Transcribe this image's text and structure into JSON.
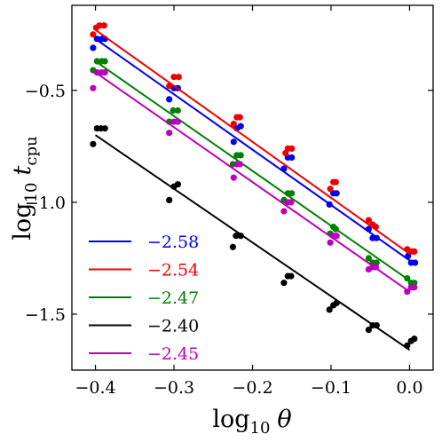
{
  "chart_data": {
    "type": "scatter",
    "xlabel": {
      "main": "log",
      "sub": "10",
      "var": "θ"
    },
    "ylabel": {
      "main": "log",
      "sub": "10",
      "var": "t",
      "varsub": "cpu"
    },
    "xlim": [
      -0.43,
      0.03
    ],
    "ylim": [
      -1.75,
      -0.12
    ],
    "x_ticks": [
      -0.4,
      -0.3,
      -0.2,
      -0.1,
      0.0
    ],
    "x_tick_labels": [
      "−0.4",
      "−0.3",
      "−0.2",
      "−0.1",
      "0.0"
    ],
    "y_ticks": [
      -1.5,
      -1.0,
      -0.5
    ],
    "y_tick_labels": [
      "−1.5",
      "−1.0",
      "−0.5"
    ],
    "grid": false,
    "legend_position": "bottom-left",
    "series": [
      {
        "name": "−2.58",
        "color": "#0000ee",
        "fit": {
          "x": [
            -0.4,
            0.0
          ],
          "y": [
            -0.27,
            -1.26
          ]
        },
        "points": [
          [
            -0.403,
            -0.31
          ],
          [
            -0.398,
            -0.27
          ],
          [
            -0.392,
            -0.27
          ],
          [
            -0.388,
            -0.27
          ],
          [
            -0.306,
            -0.54
          ],
          [
            -0.3,
            -0.49
          ],
          [
            -0.295,
            -0.49
          ],
          [
            -0.224,
            -0.73
          ],
          [
            -0.22,
            -0.67
          ],
          [
            -0.215,
            -0.66
          ],
          [
            -0.16,
            -0.85
          ],
          [
            -0.155,
            -0.8
          ],
          [
            -0.15,
            -0.8
          ],
          [
            -0.102,
            -1.01
          ],
          [
            -0.097,
            -0.96
          ],
          [
            -0.093,
            -0.96
          ],
          [
            -0.052,
            -1.12
          ],
          [
            -0.047,
            -1.16
          ],
          [
            -0.042,
            -1.16
          ],
          [
            -0.002,
            -1.24
          ],
          [
            0.002,
            -1.27
          ],
          [
            0.007,
            -1.27
          ]
        ]
      },
      {
        "name": "−2.54",
        "color": "#ee0000",
        "fit": {
          "x": [
            -0.4,
            0.0
          ],
          "y": [
            -0.23,
            -1.23
          ]
        },
        "points": [
          [
            -0.403,
            -0.25
          ],
          [
            -0.399,
            -0.22
          ],
          [
            -0.395,
            -0.21
          ],
          [
            -0.389,
            -0.21
          ],
          [
            -0.306,
            -0.48
          ],
          [
            -0.3,
            -0.44
          ],
          [
            -0.294,
            -0.44
          ],
          [
            -0.224,
            -0.65
          ],
          [
            -0.22,
            -0.62
          ],
          [
            -0.216,
            -0.62
          ],
          [
            -0.158,
            -0.78
          ],
          [
            -0.155,
            -0.76
          ],
          [
            -0.15,
            -0.76
          ],
          [
            -0.101,
            -0.94
          ],
          [
            -0.097,
            -0.91
          ],
          [
            -0.094,
            -0.91
          ],
          [
            -0.052,
            -1.08
          ],
          [
            -0.047,
            -1.1
          ],
          [
            -0.043,
            -1.11
          ],
          [
            -0.003,
            -1.21
          ],
          [
            0.002,
            -1.22
          ],
          [
            0.006,
            -1.22
          ]
        ]
      },
      {
        "name": "−2.47",
        "color": "#008000",
        "fit": {
          "x": [
            -0.4,
            0.0
          ],
          "y": [
            -0.37,
            -1.35
          ]
        },
        "points": [
          [
            -0.403,
            -0.41
          ],
          [
            -0.398,
            -0.37
          ],
          [
            -0.392,
            -0.37
          ],
          [
            -0.388,
            -0.37
          ],
          [
            -0.306,
            -0.64
          ],
          [
            -0.301,
            -0.59
          ],
          [
            -0.295,
            -0.59
          ],
          [
            -0.225,
            -0.83
          ],
          [
            -0.22,
            -0.79
          ],
          [
            -0.215,
            -0.79
          ],
          [
            -0.16,
            -0.99
          ],
          [
            -0.155,
            -0.96
          ],
          [
            -0.15,
            -0.96
          ],
          [
            -0.101,
            -1.14
          ],
          [
            -0.097,
            -1.11
          ],
          [
            -0.094,
            -1.12
          ],
          [
            -0.052,
            -1.25
          ],
          [
            -0.047,
            -1.27
          ],
          [
            -0.042,
            -1.27
          ],
          [
            -0.003,
            -1.34
          ],
          [
            0.002,
            -1.36
          ],
          [
            0.006,
            -1.36
          ]
        ]
      },
      {
        "name": "−2.40",
        "color": "#000000",
        "fit": {
          "x": [
            -0.4,
            0.0
          ],
          "y": [
            -0.7,
            -1.66
          ]
        },
        "points": [
          [
            -0.403,
            -0.74
          ],
          [
            -0.398,
            -0.67
          ],
          [
            -0.393,
            -0.67
          ],
          [
            -0.388,
            -0.67
          ],
          [
            -0.306,
            -0.99
          ],
          [
            -0.3,
            -0.93
          ],
          [
            -0.295,
            -0.92
          ],
          [
            -0.225,
            -1.2
          ],
          [
            -0.221,
            -1.15
          ],
          [
            -0.215,
            -1.15
          ],
          [
            -0.16,
            -1.36
          ],
          [
            -0.155,
            -1.33
          ],
          [
            -0.151,
            -1.33
          ],
          [
            -0.102,
            -1.48
          ],
          [
            -0.097,
            -1.46
          ],
          [
            -0.093,
            -1.45
          ],
          [
            -0.052,
            -1.57
          ],
          [
            -0.047,
            -1.55
          ],
          [
            -0.042,
            -1.55
          ],
          [
            -0.003,
            -1.64
          ],
          [
            0.002,
            -1.62
          ],
          [
            0.006,
            -1.61
          ]
        ]
      },
      {
        "name": "−2.45",
        "color": "#bb00bb",
        "fit": {
          "x": [
            -0.4,
            0.0
          ],
          "y": [
            -0.42,
            -1.4
          ]
        },
        "points": [
          [
            -0.403,
            -0.49
          ],
          [
            -0.398,
            -0.42
          ],
          [
            -0.392,
            -0.42
          ],
          [
            -0.388,
            -0.42
          ],
          [
            -0.306,
            -0.69
          ],
          [
            -0.3,
            -0.64
          ],
          [
            -0.295,
            -0.64
          ],
          [
            -0.224,
            -0.89
          ],
          [
            -0.22,
            -0.83
          ],
          [
            -0.216,
            -0.83
          ],
          [
            -0.16,
            -1.04
          ],
          [
            -0.155,
            -1.0
          ],
          [
            -0.151,
            -1.0
          ],
          [
            -0.101,
            -1.18
          ],
          [
            -0.097,
            -1.15
          ],
          [
            -0.093,
            -1.15
          ],
          [
            -0.052,
            -1.3
          ],
          [
            -0.047,
            -1.29
          ],
          [
            -0.043,
            -1.29
          ],
          [
            -0.003,
            -1.4
          ],
          [
            0.002,
            -1.38
          ],
          [
            0.006,
            -1.38
          ]
        ]
      }
    ]
  }
}
